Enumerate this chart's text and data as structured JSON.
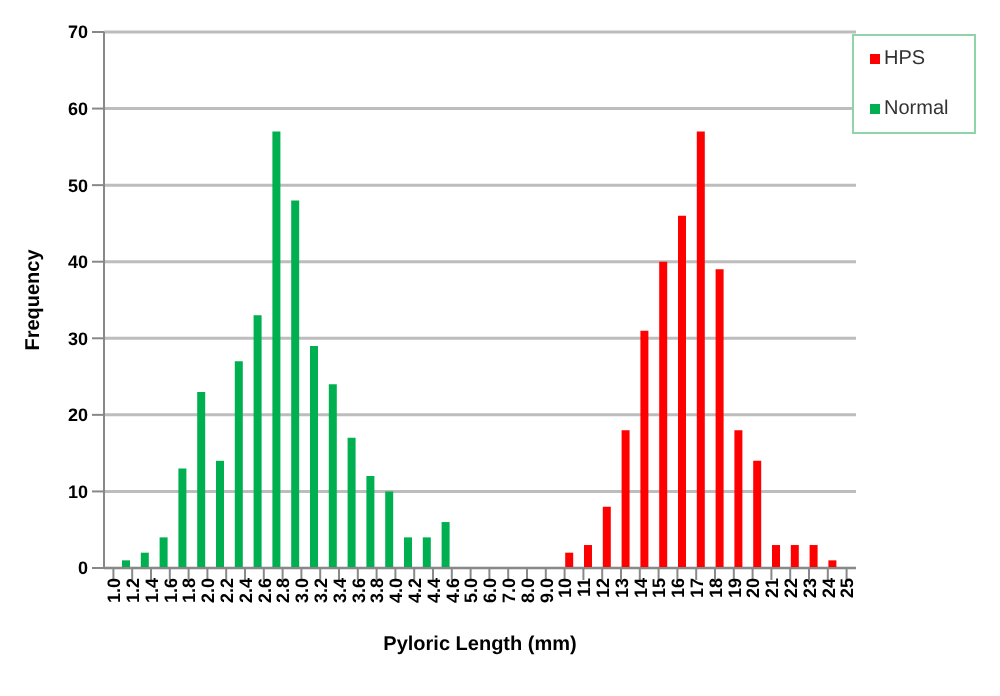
{
  "chart_data": {
    "type": "bar",
    "xlabel": "Pyloric Length (mm)",
    "ylabel": "Frequency",
    "categories": [
      "1.0",
      "1.2",
      "1.4",
      "1.6",
      "1.8",
      "2.0",
      "2.2",
      "2.4",
      "2.6",
      "2.8",
      "3.0",
      "3.2",
      "3.4",
      "3.6",
      "3.8",
      "4.0",
      "4.2",
      "4.4",
      "4.6",
      "5.0",
      "6.0",
      "7.0",
      "8.0",
      "9.0",
      "10",
      "11",
      "12",
      "13",
      "14",
      "15",
      "16",
      "17",
      "18",
      "19",
      "20",
      "21",
      "22",
      "23",
      "24",
      "25"
    ],
    "series": [
      {
        "name": "HPS",
        "color": "#ff0000",
        "values": [
          null,
          null,
          null,
          null,
          null,
          null,
          null,
          null,
          null,
          null,
          null,
          null,
          null,
          null,
          null,
          null,
          null,
          null,
          null,
          null,
          null,
          null,
          null,
          null,
          2,
          3,
          8,
          18,
          31,
          40,
          46,
          57,
          39,
          18,
          14,
          3,
          3,
          3,
          1,
          null
        ]
      },
      {
        "name": "Normal",
        "color": "#00b050",
        "values": [
          null,
          1,
          2,
          4,
          13,
          23,
          14,
          27,
          33,
          57,
          48,
          29,
          24,
          17,
          12,
          10,
          4,
          4,
          6,
          null,
          null,
          null,
          null,
          null,
          null,
          null,
          null,
          null,
          null,
          null,
          null,
          null,
          null,
          null,
          null,
          null,
          null,
          null,
          null,
          null
        ]
      }
    ],
    "ylim": [
      0,
      70
    ],
    "yticks": [
      0,
      10,
      20,
      30,
      40,
      50,
      60,
      70
    ],
    "grid": "y",
    "legend": "top right"
  }
}
